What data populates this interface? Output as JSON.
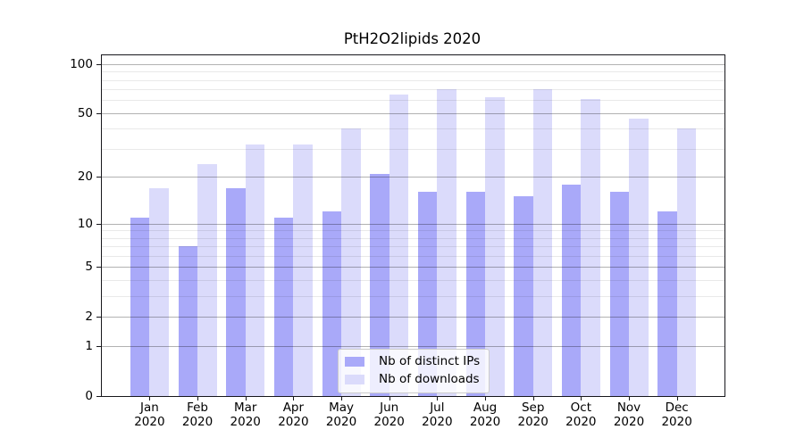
{
  "chart_data": {
    "type": "bar",
    "title": "PtH2O2lipids 2020",
    "categories": [
      "Jan 2020",
      "Feb 2020",
      "Mar 2020",
      "Apr 2020",
      "May 2020",
      "Jun 2020",
      "Jul 2020",
      "Aug 2020",
      "Sep 2020",
      "Oct 2020",
      "Nov 2020",
      "Dec 2020"
    ],
    "month_labels": [
      "Jan",
      "Feb",
      "Mar",
      "Apr",
      "May",
      "Jun",
      "Jul",
      "Aug",
      "Sep",
      "Oct",
      "Nov",
      "Dec"
    ],
    "year_label": "2020",
    "series": [
      {
        "name": "Nb of distinct IPs",
        "color": "#a9a9f9",
        "values": [
          11,
          7,
          17,
          11,
          12,
          21,
          16,
          16,
          15,
          18,
          16,
          12
        ]
      },
      {
        "name": "Nb of downloads",
        "color": "#dbdbfb",
        "values": [
          17,
          24,
          32,
          32,
          40,
          65,
          70,
          63,
          70,
          61,
          46,
          40
        ]
      }
    ],
    "xlabel": "",
    "ylabel": "",
    "yscale": "log1p",
    "ylim": [
      0,
      113
    ],
    "yticks": [
      100,
      50,
      20,
      10,
      5,
      2,
      1,
      0
    ],
    "yticks_minor": [
      90,
      80,
      70,
      60,
      40,
      30,
      9,
      8,
      7,
      6,
      4,
      3
    ],
    "grid": true,
    "legend_position": "lower center",
    "colors": {
      "frame": "#17171c",
      "grid_major": "#b0b0b0",
      "grid_minor": "#e8e8e8",
      "background": "#ffffff"
    }
  }
}
